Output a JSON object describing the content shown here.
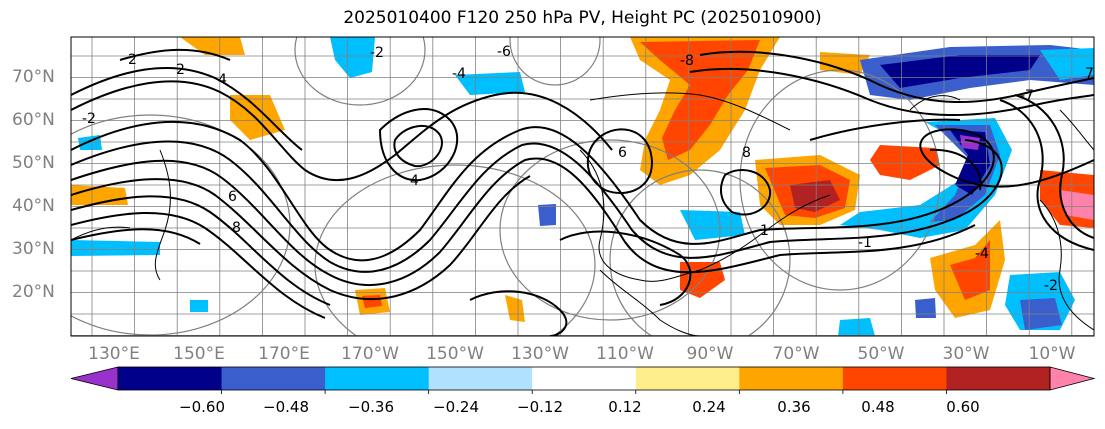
{
  "title": "2025010400 F120 250 hPa PV, Height PC (2025010900)",
  "lat_labels": [
    "70°N",
    "60°N",
    "50°N",
    "40°N",
    "30°N",
    "20°N"
  ],
  "lon_labels": [
    "130°E",
    "150°E",
    "170°E",
    "170°W",
    "150°W",
    "130°W",
    "110°W",
    "90°W",
    "70°W",
    "50°W",
    "30°W",
    "10°W"
  ],
  "colorbar": {
    "tick_labels": [
      "−0.60",
      "−0.48",
      "−0.36",
      "−0.24",
      "−0.12",
      "0.12",
      "0.24",
      "0.36",
      "0.48",
      "0.60"
    ],
    "colors": [
      "#9932cc",
      "#00008b",
      "#3a5fcd",
      "#00bfff",
      "#b0e2ff",
      "#ffffff",
      "#ffec8b",
      "#ffa500",
      "#ff4500",
      "#b22222",
      "#ff82ab"
    ]
  },
  "contour_labels": [
    "-2",
    "2",
    "4",
    "6",
    "8",
    "-2",
    "-4",
    "-6",
    "6",
    "8",
    "-1",
    "1",
    "7",
    "4",
    "-8",
    "-7",
    "-4",
    "-2",
    "2"
  ],
  "colors": {
    "contour": "#000000",
    "grid": "#808080",
    "coast": "#000000"
  }
}
